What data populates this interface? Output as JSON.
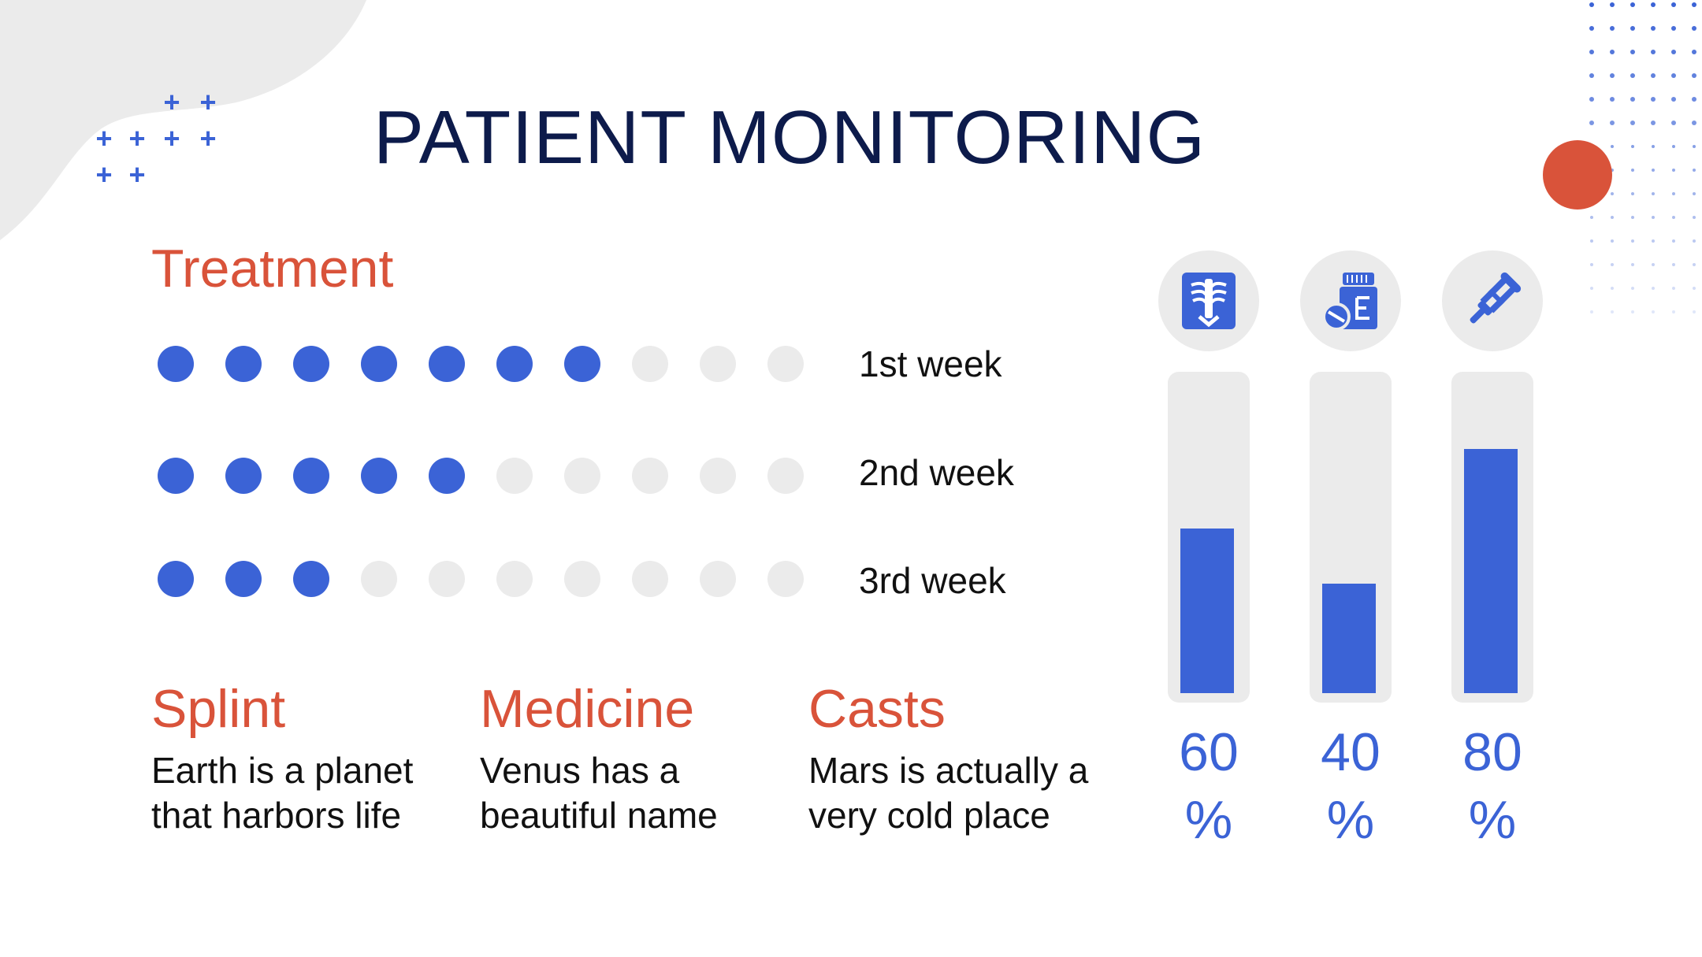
{
  "title": "PATIENT MONITORING",
  "colors": {
    "accent_blue": "#3b63d6",
    "accent_orange": "#d9533a",
    "navy": "#0d1b4b",
    "light_gray": "#ebebeb"
  },
  "treatment": {
    "heading": "Treatment",
    "rows": [
      {
        "label": "1st week",
        "filled": 7,
        "total": 10
      },
      {
        "label": "2nd week",
        "filled": 5,
        "total": 10
      },
      {
        "label": "3rd week",
        "filled": 3,
        "total": 10
      }
    ]
  },
  "features": [
    {
      "title": "Splint",
      "line1": "Earth is a planet",
      "line2": "that harbors life"
    },
    {
      "title": "Medicine",
      "line1": "Venus has a",
      "line2": "beautiful name"
    },
    {
      "title": "Casts",
      "line1": "Mars is actually a",
      "line2": "very cold place"
    }
  ],
  "metrics": [
    {
      "icon": "xray-icon",
      "value": 60,
      "number": "60",
      "unit": "%"
    },
    {
      "icon": "medicine-bottle-icon",
      "value": 40,
      "number": "40",
      "unit": "%"
    },
    {
      "icon": "crutch-icon",
      "value": 80,
      "number": "80",
      "unit": "%"
    }
  ]
}
